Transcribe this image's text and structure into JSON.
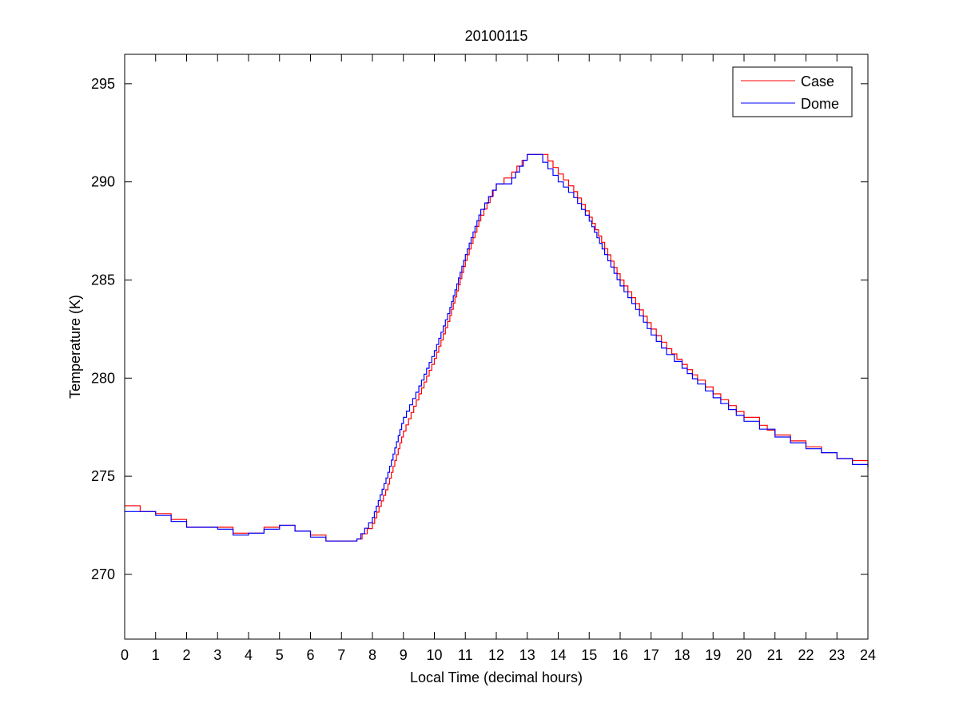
{
  "chart_data": {
    "type": "line",
    "title": "20100115",
    "xlabel": "Local Time (decimal hours)",
    "ylabel": "Temperature (K)",
    "xlim": [
      0,
      24
    ],
    "ylim": [
      266.7,
      296.5
    ],
    "xticks": [
      0,
      1,
      2,
      3,
      4,
      5,
      6,
      7,
      8,
      9,
      10,
      11,
      12,
      13,
      14,
      15,
      16,
      17,
      18,
      19,
      20,
      21,
      22,
      23,
      24
    ],
    "yticks": [
      270,
      275,
      280,
      285,
      290,
      295
    ],
    "grid": false,
    "legend_position": "top-right",
    "step_plot": true,
    "series": [
      {
        "name": "Case",
        "color": "#ff0000",
        "x": [
          0,
          0.5,
          1,
          1.5,
          2,
          2.5,
          3,
          3.5,
          4,
          4.5,
          5,
          5.5,
          6,
          6.5,
          7,
          7.5,
          8,
          8.5,
          9,
          9.5,
          10,
          10.5,
          11,
          11.5,
          12,
          12.5,
          13,
          13.5,
          14,
          14.5,
          15,
          15.5,
          16,
          16.5,
          17,
          17.5,
          18,
          18.5,
          19,
          19.5,
          20,
          20.5,
          21,
          21.5,
          22,
          22.5,
          23,
          23.5,
          24
        ],
        "y": [
          273.5,
          273.2,
          273.1,
          272.8,
          272.4,
          272.4,
          272.4,
          272.1,
          272.1,
          272.4,
          272.5,
          272.2,
          272.0,
          271.7,
          271.7,
          271.8,
          272.6,
          274.6,
          277.3,
          279.2,
          281.0,
          283.2,
          286.0,
          288.3,
          289.9,
          290.5,
          291.4,
          291.4,
          290.4,
          289.5,
          288.2,
          286.6,
          285.0,
          283.8,
          282.5,
          281.5,
          280.7,
          279.9,
          279.2,
          278.6,
          278.0,
          277.6,
          277.1,
          276.8,
          276.5,
          276.2,
          275.9,
          275.8,
          275.5
        ]
      },
      {
        "name": "Dome",
        "color": "#0000ff",
        "x": [
          0,
          0.5,
          1,
          1.5,
          2,
          2.5,
          3,
          3.5,
          4,
          4.5,
          5,
          5.5,
          6,
          6.5,
          7,
          7.5,
          8,
          8.5,
          9,
          9.5,
          10,
          10.5,
          11,
          11.5,
          12,
          12.5,
          13,
          13.5,
          14,
          14.5,
          15,
          15.5,
          16,
          16.5,
          17,
          17.5,
          18,
          18.5,
          19,
          19.5,
          20,
          20.5,
          21,
          21.5,
          22,
          22.5,
          23,
          23.5,
          24
        ],
        "y": [
          273.2,
          273.2,
          273.0,
          272.7,
          272.4,
          272.4,
          272.3,
          272.0,
          272.1,
          272.3,
          272.5,
          272.2,
          271.9,
          271.7,
          271.7,
          271.8,
          272.9,
          275.2,
          278.0,
          279.6,
          281.4,
          283.6,
          286.3,
          288.6,
          289.9,
          290.2,
          291.4,
          291.0,
          290.0,
          289.2,
          288.0,
          286.3,
          284.7,
          283.5,
          282.2,
          281.2,
          280.5,
          279.7,
          279.0,
          278.4,
          277.8,
          277.4,
          277.0,
          276.7,
          276.4,
          276.2,
          275.9,
          275.6,
          275.4
        ]
      }
    ]
  }
}
